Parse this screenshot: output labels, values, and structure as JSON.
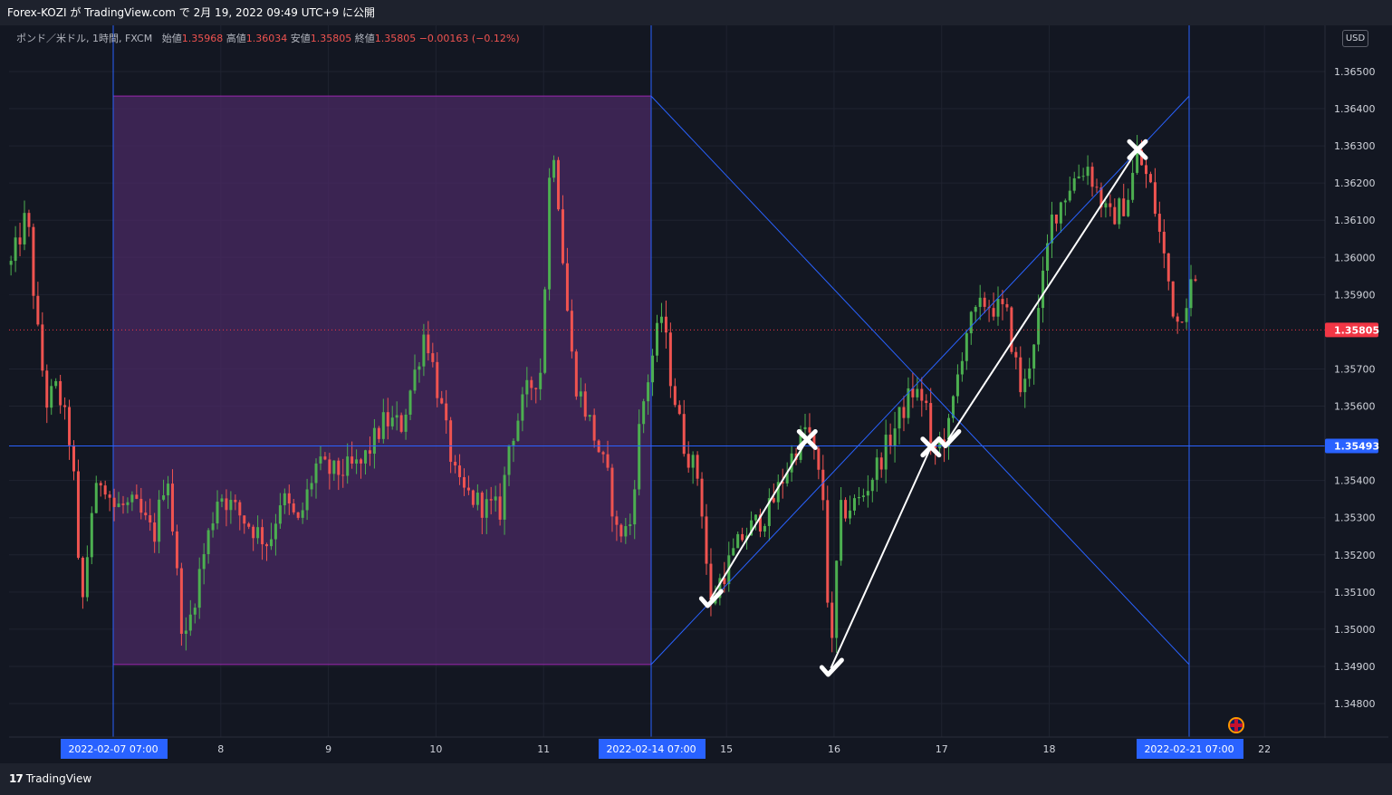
{
  "header": {
    "title": "Forex-KOZI が TradingView.com で 2月 19, 2022 09:49 UTC+9 に公開"
  },
  "legend": {
    "symbol": "ポンド／米ドル, 1時間, FXCM",
    "open_label": "始値",
    "open": "1.35968",
    "high_label": "高値",
    "high": "1.36034",
    "low_label": "安値",
    "low": "1.35805",
    "close_label": "終値",
    "close": "1.35805",
    "change": "−0.00163 (−0.12%)"
  },
  "price_scale": {
    "currency_button": "USD"
  },
  "footer": {
    "brand": "TradingView",
    "logo_icon": "tradingview-logo-icon"
  },
  "colors": {
    "up": "#26a69a",
    "candle_up": "#4caf50",
    "candle_down": "#ef5350",
    "accent_blue": "#2962ff",
    "box_fill": "#4a2a63",
    "box_border": "#9c27b0",
    "last_price": "#f23645"
  },
  "chart_data": {
    "type": "candlestick",
    "symbol": "GBPUSD",
    "timeframe": "1h",
    "ylim": [
      1.3472,
      1.3669
    ],
    "x_ticks": [
      {
        "label": "2022-02-07   07:00",
        "t": 0,
        "highlight": true
      },
      {
        "label": "8",
        "t": 1.0
      },
      {
        "label": "9",
        "t": 2.0
      },
      {
        "label": "10",
        "t": 3.0
      },
      {
        "label": "11",
        "t": 4.0
      },
      {
        "label": "2022-02-14   07:00",
        "t": 5.0,
        "highlight": true
      },
      {
        "label": "15",
        "t": 5.7
      },
      {
        "label": "16",
        "t": 6.7
      },
      {
        "label": "17",
        "t": 7.7
      },
      {
        "label": "18",
        "t": 8.7
      },
      {
        "label": "2022-02-21   07:00",
        "t": 10.0,
        "highlight": true
      },
      {
        "label": "22",
        "t": 10.7
      }
    ],
    "x_range": [
      -0.96,
      11.6
    ],
    "y_ticks": [
      "1.36500",
      "1.36400",
      "1.36300",
      "1.36200",
      "1.36100",
      "1.36000",
      "1.35900",
      "1.35700",
      "1.35600",
      "1.35400",
      "1.35300",
      "1.35200",
      "1.35100",
      "1.35000",
      "1.34900",
      "1.34800"
    ],
    "price_labels": [
      {
        "value": 1.35805,
        "label": "1.35805",
        "kind": "last"
      },
      {
        "value": 1.35493,
        "label": "1.35493",
        "kind": "horizontal-line"
      }
    ],
    "rectangle": {
      "t0": 0,
      "t1": 5.0,
      "top": 1.36434,
      "bottom": 1.34905
    },
    "vertical_lines": [
      0,
      5.0,
      10.0
    ],
    "horizontal_line": 1.35493,
    "cross_lines": [
      {
        "t0": 5.0,
        "p0": 1.36434,
        "t1": 10.0,
        "p1": 1.34905
      },
      {
        "t0": 5.0,
        "p0": 1.34905,
        "t1": 10.0,
        "p1": 1.36434
      }
    ],
    "trend_lines": [
      {
        "t0": 5.55,
        "p0": 1.3508,
        "t1": 6.45,
        "p1": 1.3551
      },
      {
        "t0": 6.67,
        "p0": 1.34895,
        "t1": 7.6,
        "p1": 1.3549
      },
      {
        "t0": 7.76,
        "p0": 1.3551,
        "t1": 9.52,
        "p1": 1.3629
      }
    ],
    "markers": [
      {
        "t": 5.55,
        "p": 1.3508,
        "symbol": "check"
      },
      {
        "t": 6.45,
        "p": 1.3551,
        "symbol": "cross"
      },
      {
        "t": 6.67,
        "p": 1.34895,
        "symbol": "check"
      },
      {
        "t": 7.6,
        "p": 1.3549,
        "symbol": "cross"
      },
      {
        "t": 7.76,
        "p": 1.3551,
        "symbol": "check"
      },
      {
        "t": 9.52,
        "p": 1.3629,
        "symbol": "cross"
      }
    ],
    "anchors": [
      [
        -0.95,
        1.3598
      ],
      [
        -0.8,
        1.3612
      ],
      [
        -0.72,
        1.3584
      ],
      [
        -0.62,
        1.3561
      ],
      [
        -0.52,
        1.3565
      ],
      [
        -0.38,
        1.3548
      ],
      [
        -0.3,
        1.3503
      ],
      [
        -0.2,
        1.3532
      ],
      [
        -0.1,
        1.3542
      ],
      [
        0.0,
        1.3533
      ],
      [
        0.2,
        1.3533
      ],
      [
        0.38,
        1.3525
      ],
      [
        0.5,
        1.3544
      ],
      [
        0.6,
        1.3512
      ],
      [
        0.66,
        1.3495
      ],
      [
        0.8,
        1.3515
      ],
      [
        0.98,
        1.3537
      ],
      [
        1.2,
        1.353
      ],
      [
        1.45,
        1.3523
      ],
      [
        1.56,
        1.3536
      ],
      [
        1.72,
        1.3528
      ],
      [
        1.88,
        1.3544
      ],
      [
        2.05,
        1.3542
      ],
      [
        2.3,
        1.3544
      ],
      [
        2.52,
        1.3556
      ],
      [
        2.68,
        1.3555
      ],
      [
        2.83,
        1.3572
      ],
      [
        2.9,
        1.3581
      ],
      [
        3.1,
        1.3552
      ],
      [
        3.2,
        1.3538
      ],
      [
        3.45,
        1.3533
      ],
      [
        3.6,
        1.3532
      ],
      [
        3.68,
        1.355
      ],
      [
        3.85,
        1.3564
      ],
      [
        3.98,
        1.357
      ],
      [
        4.05,
        1.362
      ],
      [
        4.1,
        1.363
      ],
      [
        4.2,
        1.3592
      ],
      [
        4.28,
        1.3568
      ],
      [
        4.45,
        1.3554
      ],
      [
        4.6,
        1.354
      ],
      [
        4.68,
        1.3526
      ],
      [
        4.8,
        1.3527
      ],
      [
        4.9,
        1.3557
      ],
      [
        5.0,
        1.3572
      ],
      [
        5.1,
        1.3585
      ],
      [
        5.18,
        1.3568
      ],
      [
        5.3,
        1.355
      ],
      [
        5.45,
        1.354
      ],
      [
        5.55,
        1.3505
      ],
      [
        5.62,
        1.3512
      ],
      [
        5.85,
        1.3525
      ],
      [
        6.1,
        1.3532
      ],
      [
        6.3,
        1.3546
      ],
      [
        6.45,
        1.3555
      ],
      [
        6.6,
        1.3535
      ],
      [
        6.67,
        1.3489
      ],
      [
        6.75,
        1.3531
      ],
      [
        6.95,
        1.3535
      ],
      [
        7.2,
        1.355
      ],
      [
        7.42,
        1.3564
      ],
      [
        7.55,
        1.3562
      ],
      [
        7.6,
        1.3547
      ],
      [
        7.76,
        1.3553
      ],
      [
        7.92,
        1.358
      ],
      [
        8.1,
        1.3588
      ],
      [
        8.3,
        1.3585
      ],
      [
        8.45,
        1.3562
      ],
      [
        8.6,
        1.3585
      ],
      [
        8.72,
        1.361
      ],
      [
        8.9,
        1.362
      ],
      [
        9.05,
        1.3625
      ],
      [
        9.25,
        1.361
      ],
      [
        9.42,
        1.3615
      ],
      [
        9.52,
        1.3628
      ],
      [
        9.65,
        1.3618
      ],
      [
        9.78,
        1.3598
      ],
      [
        9.88,
        1.3582
      ],
      [
        10.05,
        1.3595
      ],
      [
        10.1,
        1.35805
      ]
    ]
  }
}
